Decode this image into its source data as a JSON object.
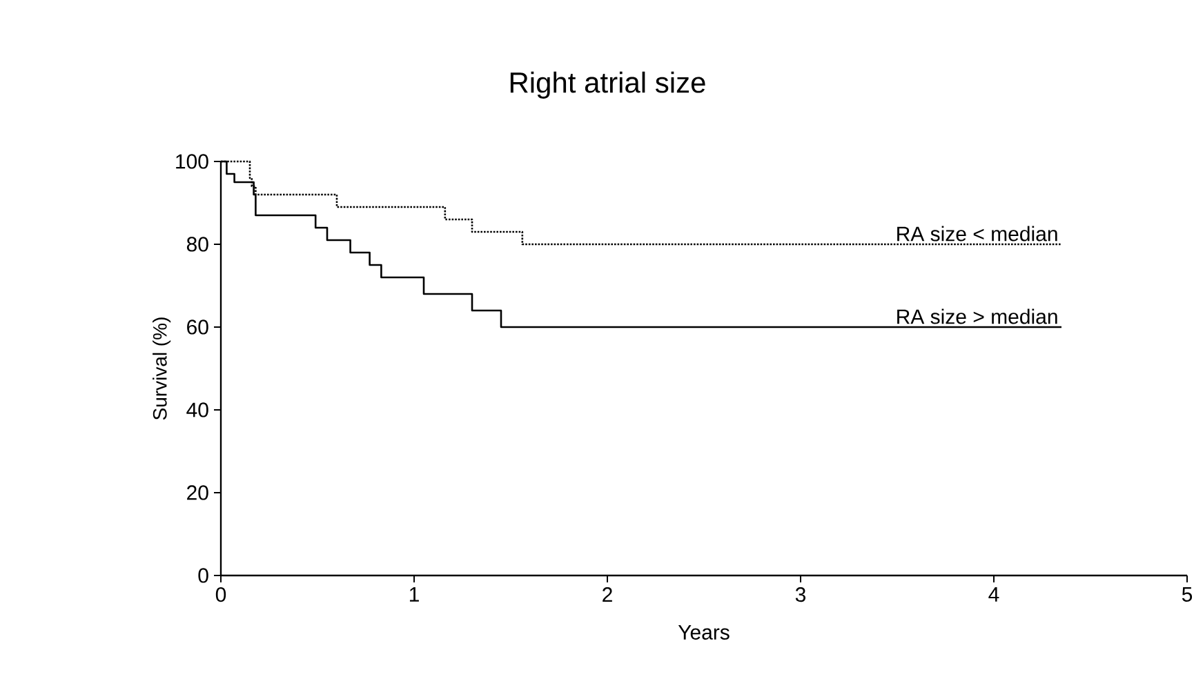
{
  "chart_data": {
    "type": "step",
    "title": "Right atrial size",
    "xlabel": "Years",
    "ylabel": "Survival (%)",
    "xlim": [
      0,
      5
    ],
    "ylim": [
      0,
      100
    ],
    "xticks": [
      0,
      1,
      2,
      3,
      4,
      5
    ],
    "yticks": [
      0,
      20,
      40,
      60,
      80,
      100
    ],
    "series": [
      {
        "name": "RA size < median",
        "color": "#000000",
        "line_style": "dotted",
        "x": [
          0,
          0.15,
          0.16,
          0.18,
          0.6,
          1.16,
          1.3,
          1.56,
          4.35
        ],
        "values": [
          100,
          96,
          94,
          92,
          89,
          86,
          83,
          80,
          80
        ]
      },
      {
        "name": "RA size > median",
        "color": "#000000",
        "line_style": "solid",
        "x": [
          0,
          0.03,
          0.07,
          0.17,
          0.18,
          0.49,
          0.55,
          0.67,
          0.77,
          0.83,
          1.05,
          1.3,
          1.45,
          4.35
        ],
        "values": [
          100,
          97,
          95,
          92,
          87,
          84,
          81,
          78,
          75,
          72,
          68,
          64,
          60,
          60
        ]
      }
    ]
  }
}
